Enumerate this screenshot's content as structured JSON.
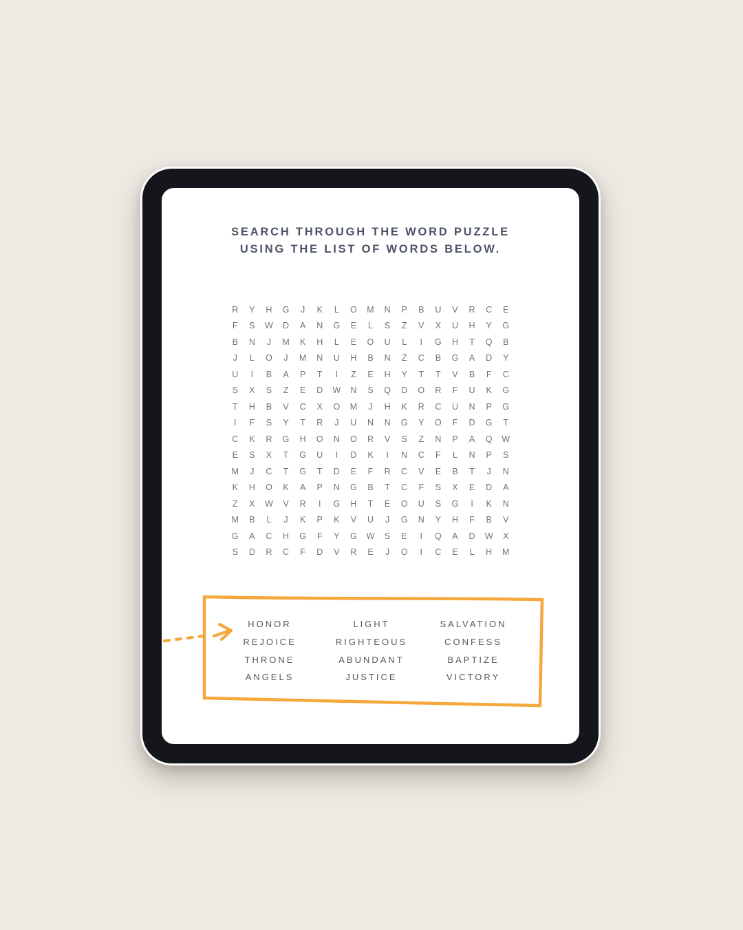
{
  "title": {
    "line1": "SEARCH THROUGH THE WORD PUZZLE",
    "line2": "USING THE LIST OF WORDS BELOW."
  },
  "puzzle": {
    "rows": [
      "RYHGJKLOMNPBUVRCE",
      "FSWDANGELSZVXUHYG",
      "BNJMKHLEOULIGHTQB",
      "JLOJMNUHBNZCBGADY",
      "UIBAPTIZEHYTTVBFC",
      "SXSZEDWNSQDORFUKG",
      "THBVCXOMJHKRCUNPG",
      "IFSYTRJUNNGYOFDGT",
      "CKRGHONORVSZNPAQW",
      "ESXTGUIDKINCFLNPS",
      "MJCTGTDEFRCVEBTJN",
      "KHOKAPNGBTCFSXEDA",
      "ZXWVRIGHTEOUSGIKN",
      "MBLJKPKVUJGNYHFBV",
      "GACHGFYGWSEIQADWX",
      "SDRCFDVREJOICELHM"
    ]
  },
  "word_list": {
    "rows": [
      [
        "HONOR",
        "LIGHT",
        "SALVATION"
      ],
      [
        "REJOICE",
        "RIGHTEOUS",
        "CONFESS"
      ],
      [
        "THRONE",
        "ABUNDANT",
        "BAPTIZE"
      ],
      [
        "ANGELS",
        "JUSTICE",
        "VICTORY"
      ]
    ]
  },
  "annotation_arrow": {
    "style": "dashed",
    "direction": "right",
    "color": "#f5a83c"
  },
  "colors": {
    "accent": "#f5a83c",
    "title_text": "#4a5365",
    "grid_letters": "#707376",
    "word_text": "#56585c",
    "background": "#edeae4",
    "bezel": "#14161b",
    "screen": "#ffffff"
  }
}
